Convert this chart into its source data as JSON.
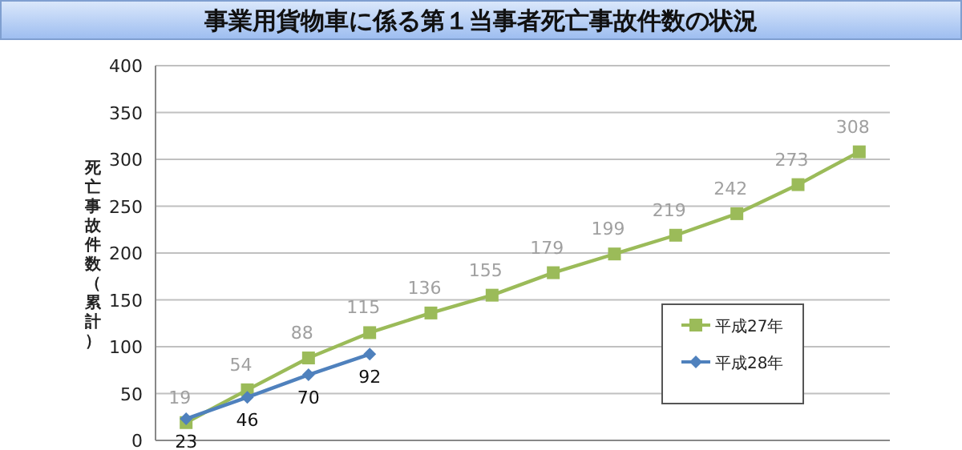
{
  "chart_data": {
    "type": "line",
    "title": "事業用貨物車に係る第１当事者死亡事故件数の状況",
    "ylabel": "死亡事故件数（累計）",
    "categories": [
      null,
      null,
      null,
      null,
      null,
      null,
      null,
      null,
      null,
      null,
      null,
      null
    ],
    "series": [
      {
        "name": "平成27年",
        "color": "#9bbb59",
        "marker": "square",
        "values": [
          19,
          54,
          88,
          115,
          136,
          155,
          179,
          199,
          219,
          242,
          273,
          308
        ]
      },
      {
        "name": "平成28年",
        "color": "#4f81bd",
        "marker": "diamond",
        "values": [
          23,
          46,
          70,
          92,
          null,
          null,
          null,
          null,
          null,
          null,
          null,
          null
        ]
      }
    ],
    "ylim": [
      0,
      400
    ],
    "yticks": [
      0,
      50,
      100,
      150,
      200,
      250,
      300,
      350,
      400
    ],
    "grid": "y",
    "legend": "right",
    "data_labels": true
  }
}
